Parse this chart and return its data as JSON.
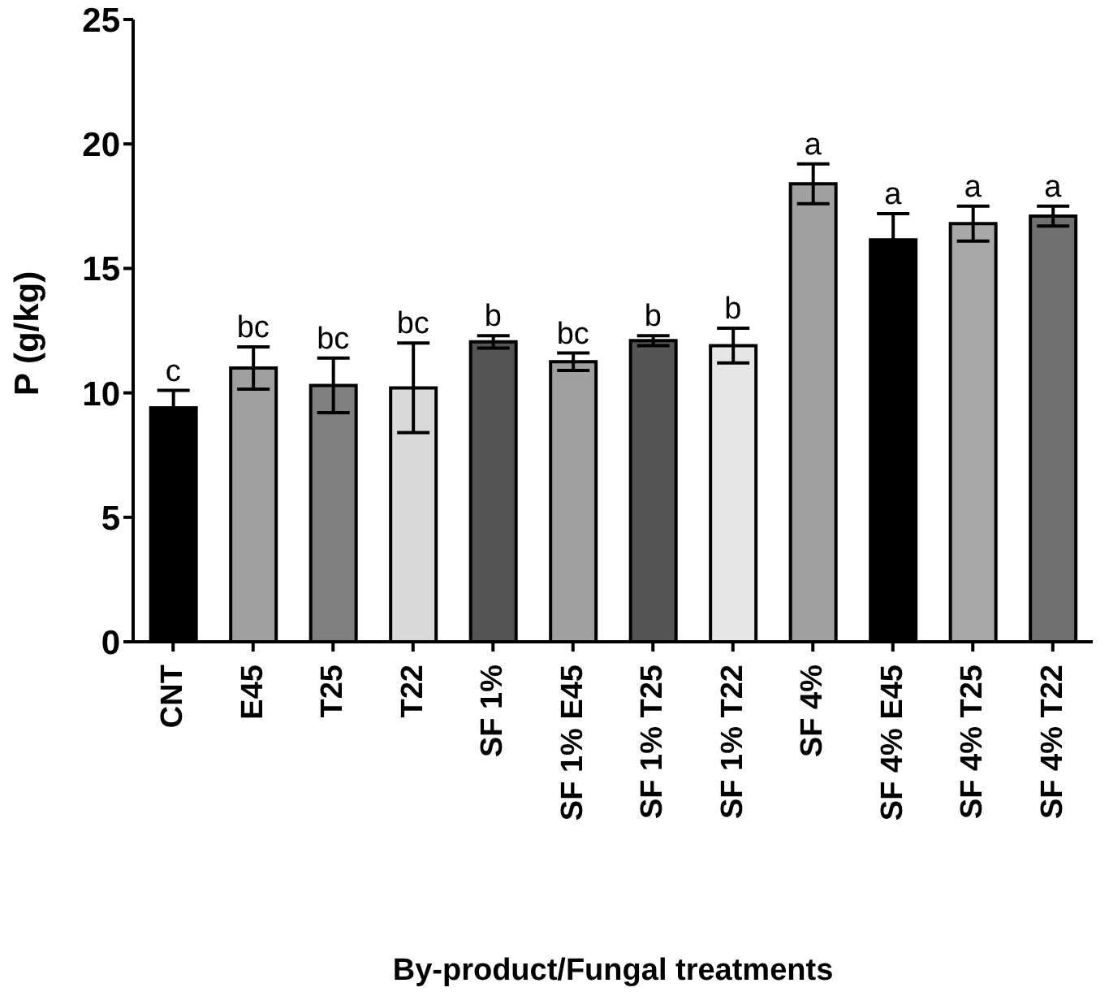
{
  "chart_data": {
    "type": "bar",
    "xlabel": "By-product/Fungal treatments",
    "ylabel": "P (g/kg)",
    "categories": [
      "CNT",
      "E45",
      "T25",
      "T22",
      "SF 1%",
      "SF 1% E45",
      "SF 1% T25",
      "SF 1% T22",
      "SF 4%",
      "SF 4% E45",
      "SF 4% T25",
      "SF 4% T22"
    ],
    "values": [
      9.4,
      11.0,
      10.3,
      10.2,
      12.05,
      11.25,
      12.1,
      11.9,
      18.4,
      16.15,
      16.8,
      17.1
    ],
    "errors": [
      0.7,
      0.85,
      1.1,
      1.8,
      0.25,
      0.35,
      0.2,
      0.7,
      0.8,
      1.05,
      0.7,
      0.4
    ],
    "colors": [
      "#000000",
      "#a0a0a0",
      "#808080",
      "#d9d9d9",
      "#555555",
      "#a0a0a0",
      "#555555",
      "#e6e6e6",
      "#a0a0a0",
      "#000000",
      "#a8a8a8",
      "#707070"
    ],
    "ylim": [
      0,
      25
    ],
    "yticks": [
      0,
      5,
      10,
      15,
      20,
      25
    ],
    "grid": false,
    "annotations": [
      {
        "text": "c",
        "x": "CNT",
        "y": 10.1
      },
      {
        "text": "bc",
        "x": "E45",
        "y": 11.85
      },
      {
        "text": "bc",
        "x": "T25",
        "y": 11.4
      },
      {
        "text": "bc",
        "x": "T22",
        "y": 12.0
      },
      {
        "text": "b",
        "x": "SF 1%",
        "y": 12.3
      },
      {
        "text": "bc",
        "x": "SF 1% E45",
        "y": 11.6
      },
      {
        "text": "b",
        "x": "SF 1% T25",
        "y": 12.3
      },
      {
        "text": "b",
        "x": "SF 1% T22",
        "y": 12.6
      },
      {
        "text": "a",
        "x": "SF 4%",
        "y": 19.2
      },
      {
        "text": "a",
        "x": "SF 4% E45",
        "y": 17.2
      },
      {
        "text": "a",
        "x": "SF 4% T25",
        "y": 17.5
      },
      {
        "text": "a",
        "x": "SF 4% T22",
        "y": 17.5
      }
    ]
  }
}
